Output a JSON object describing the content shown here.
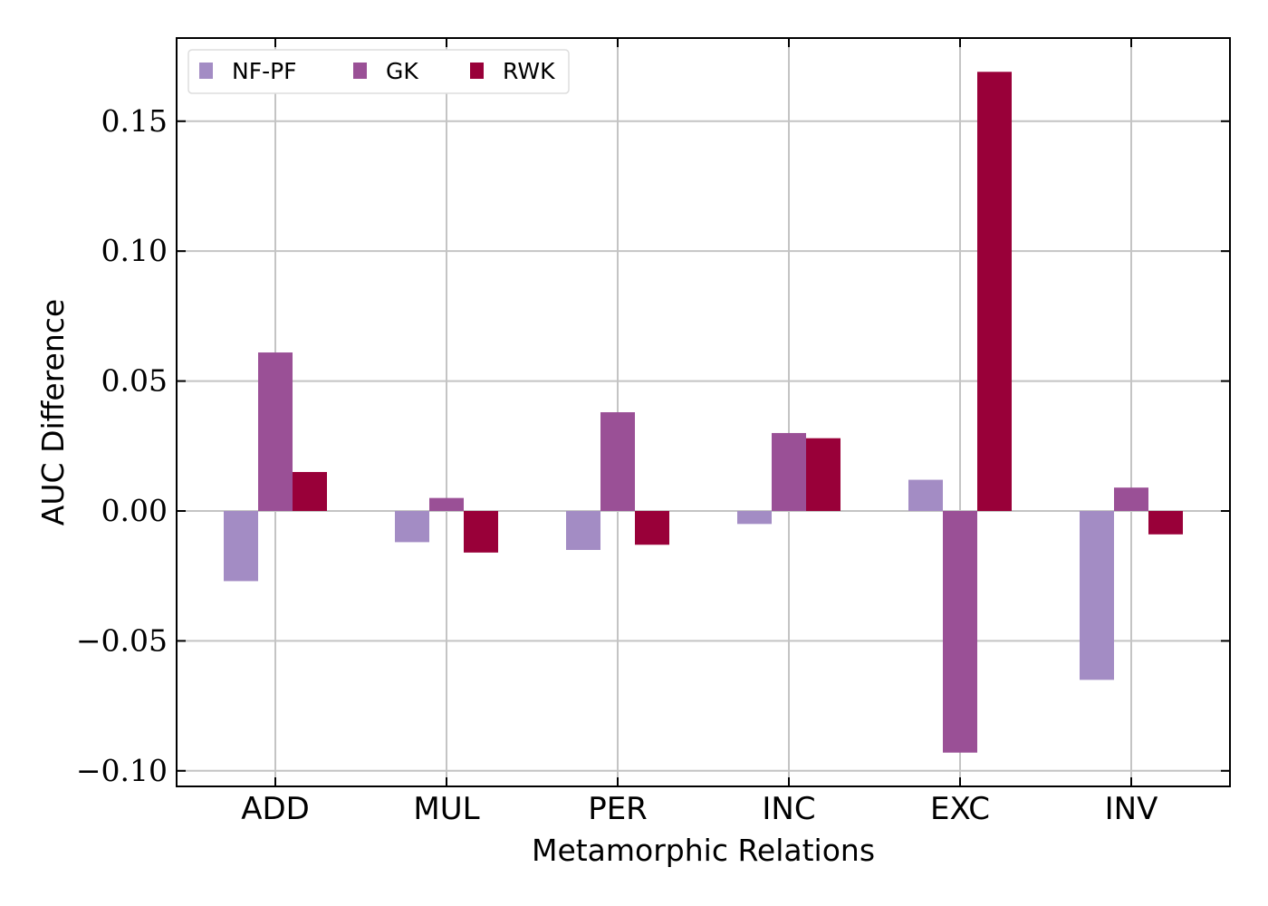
{
  "chart_data": {
    "type": "bar",
    "title": "",
    "xlabel": "Metamorphic Relations",
    "ylabel": "AUC Difference",
    "categories": [
      "ADD",
      "MUL",
      "PER",
      "INC",
      "EXC",
      "INV"
    ],
    "series": [
      {
        "name": "NF-PF",
        "color": "#a38cc4",
        "values": [
          -0.027,
          -0.012,
          -0.015,
          -0.005,
          0.012,
          -0.065
        ]
      },
      {
        "name": "GK",
        "color": "#9a5096",
        "values": [
          0.061,
          0.005,
          0.038,
          0.03,
          -0.093,
          0.009
        ]
      },
      {
        "name": "RWK",
        "color": "#990039",
        "values": [
          0.015,
          -0.016,
          -0.013,
          0.028,
          0.169,
          -0.009
        ]
      }
    ],
    "ylim": [
      -0.106,
      0.182
    ],
    "yticks": [
      -0.1,
      -0.05,
      0.0,
      0.05,
      0.1,
      0.15
    ],
    "ytick_labels": [
      "−0.10",
      "−0.05",
      "0.00",
      "0.05",
      "0.10",
      "0.15"
    ],
    "grid": true,
    "legend_position": "top-left"
  }
}
